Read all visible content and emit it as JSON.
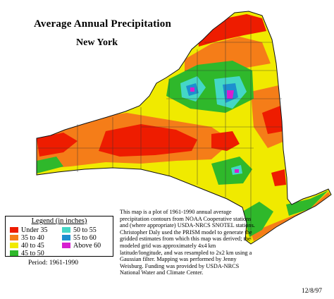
{
  "map": {
    "title": "Average Annual Precipitation",
    "region": "New York"
  },
  "legend": {
    "title": "Legend (in inches)",
    "items": [
      {
        "label": "Under 35",
        "color": "#ee1c00"
      },
      {
        "label": "35 to 40",
        "color": "#f57d18"
      },
      {
        "label": "40 to 45",
        "color": "#f0ea00"
      },
      {
        "label": "45 to 50",
        "color": "#2fb82b"
      },
      {
        "label": "50 to 55",
        "color": "#44d7c6"
      },
      {
        "label": "55 to 60",
        "color": "#1d8fcf"
      },
      {
        "label": "Above 60",
        "color": "#d61fd0"
      }
    ]
  },
  "period": "Period: 1961-1990",
  "caption": "This map is a plot of 1961-1990 annual average precipitation contours from NOAA Cooperative stations and (where appropriate) USDA-NRCS SNOTEL stations. Christopher Daly used the PRISM model to generate the gridded estimates from which this map was derived; the modeled grid was approximately 4x4 km latitude/longitude, and was resampled to 2x2 km using a Gaussian filter. Mapping was performed by Jenny Weisburg. Funding was provided by USDA-NRCS National Water and Climate Center.",
  "date": "12/8/97"
}
